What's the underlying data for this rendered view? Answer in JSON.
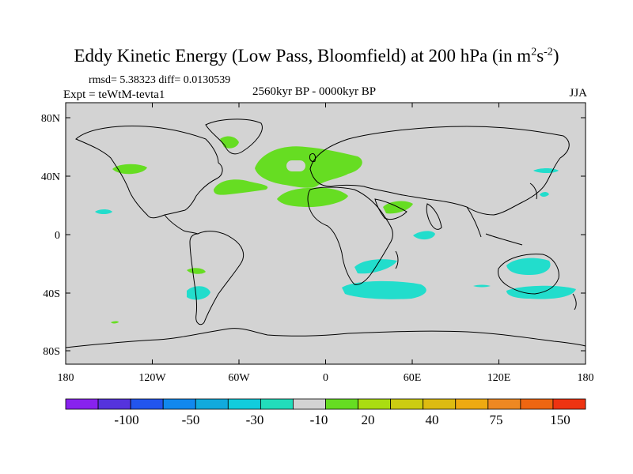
{
  "title": {
    "main": "Eddy Kinetic Energy (Low Pass, Bloomfield) at 200 hPa (in m",
    "sup1": "2",
    "mid": "s",
    "sup2": "-2",
    "end": ")"
  },
  "stats": "rmsd= 5.38323 diff= 0.0130539",
  "expt": "Expt = teWtM-tevta1",
  "period": "2560kyr BP - 0000kyr BP",
  "season": "JJA",
  "map": {
    "lon_ticks": [
      "180",
      "120W",
      "60W",
      "0",
      "60E",
      "120E",
      "180"
    ],
    "lat_ticks": [
      "80N",
      "40N",
      "0",
      "40S",
      "80S"
    ],
    "ocean_fill": "#d3d3d3",
    "positive_color": "#66dd22",
    "negative_color": "#22ddcc"
  },
  "colorbar": {
    "colors": [
      "#8822ee",
      "#5533dd",
      "#2255ee",
      "#1188ee",
      "#11aadd",
      "#11ccdd",
      "#22ddbb",
      "#d3d3d3",
      "#66dd22",
      "#aadd11",
      "#cccc11",
      "#ddbb11",
      "#eeaa11",
      "#ee8822",
      "#ee6611",
      "#ee3311"
    ],
    "labels": [
      "-100",
      "-50",
      "-30",
      "-10",
      "20",
      "40",
      "75",
      "150"
    ]
  }
}
